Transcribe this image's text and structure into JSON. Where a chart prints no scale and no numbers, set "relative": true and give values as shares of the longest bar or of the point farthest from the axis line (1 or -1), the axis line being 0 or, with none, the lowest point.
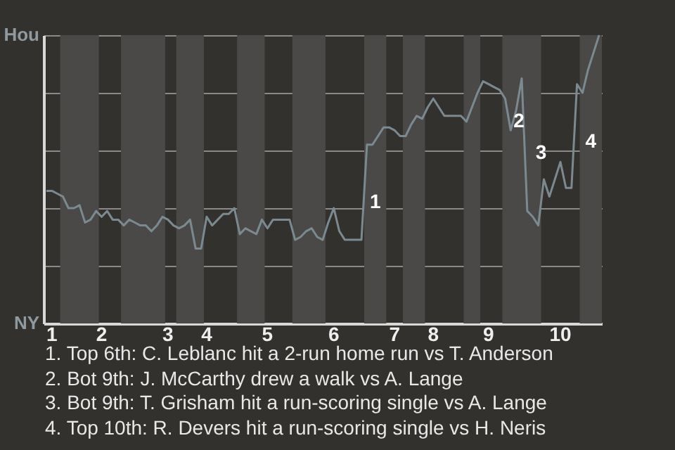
{
  "chart_data": {
    "type": "line",
    "relative": true,
    "grid": "y",
    "categories": [
      null,
      "1",
      null,
      null,
      null,
      null,
      null,
      null,
      null,
      null,
      "2",
      null,
      null,
      null,
      null,
      null,
      null,
      null,
      null,
      null,
      null,
      null,
      "3",
      null,
      null,
      null,
      null,
      null,
      null,
      "4",
      null,
      null,
      null,
      null,
      null,
      null,
      null,
      null,
      null,
      null,
      "5",
      null,
      null,
      null,
      null,
      null,
      null,
      null,
      null,
      null,
      null,
      null,
      "6",
      null,
      null,
      null,
      null,
      null,
      null,
      null,
      null,
      null,
      null,
      "7",
      null,
      null,
      null,
      null,
      null,
      null,
      "8",
      null,
      null,
      null,
      null,
      null,
      null,
      null,
      null,
      null,
      "9",
      null,
      null,
      null,
      null,
      null,
      null,
      null,
      null,
      null,
      null,
      null,
      null,
      "10",
      null,
      null,
      null,
      null,
      null,
      null,
      null
    ],
    "series": [
      {
        "color": "#7b8a91",
        "values": [
          0.46,
          0.46,
          0.45,
          0.44,
          0.4,
          0.4,
          0.41,
          0.35,
          0.36,
          0.39,
          0.37,
          0.39,
          0.36,
          0.36,
          0.34,
          0.36,
          0.35,
          0.34,
          0.34,
          0.32,
          0.34,
          0.37,
          0.36,
          0.34,
          0.33,
          0.34,
          0.36,
          0.26,
          0.26,
          0.37,
          0.34,
          0.36,
          0.38,
          0.38,
          0.4,
          0.31,
          0.33,
          0.32,
          0.31,
          0.36,
          0.33,
          0.36,
          0.36,
          0.36,
          0.36,
          0.29,
          0.3,
          0.32,
          0.33,
          0.3,
          0.29,
          0.35,
          0.4,
          0.32,
          0.29,
          0.29,
          0.29,
          0.29,
          0.62,
          0.62,
          0.65,
          0.68,
          0.68,
          0.67,
          0.65,
          0.65,
          0.69,
          0.72,
          0.71,
          0.75,
          0.78,
          0.75,
          0.72,
          0.72,
          0.72,
          0.72,
          0.7,
          0.75,
          0.8,
          0.84,
          0.83,
          0.82,
          0.81,
          0.78,
          0.67,
          0.74,
          0.85,
          0.39,
          0.37,
          0.34,
          0.5,
          0.44,
          0.5,
          0.56,
          0.47,
          0.47,
          0.83,
          0.8,
          0.88,
          0.94,
          1.0
        ]
      }
    ],
    "annotations": [
      "Hou",
      "NY",
      "1. Top 6th: C. Leblanc hit a 2-run home run vs T. Anderson",
      "2. Bot 9th: J. McCarthy drew a walk vs A. Lange",
      "3. Bot 9th: T. Grisham hit a run-scoring single vs A. Lange",
      "4. Top 10th: R. Devers hit a run-scoring single vs H. Neris",
      "1",
      "2",
      "3",
      "4"
    ]
  }
}
